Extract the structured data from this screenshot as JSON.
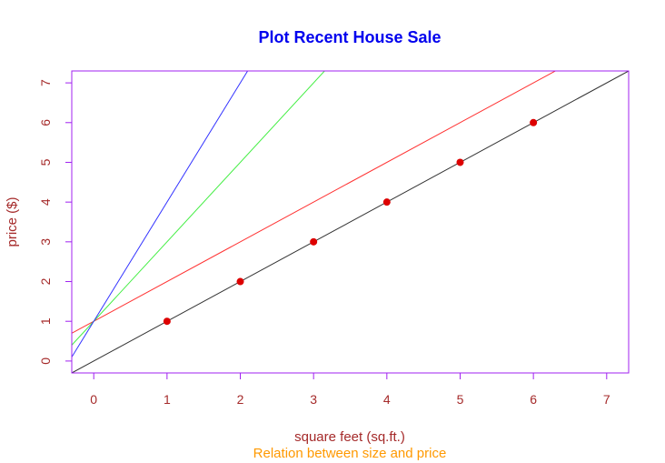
{
  "chart_data": {
    "type": "scatter",
    "title": "Plot Recent House Sale",
    "xlabel": "square feet (sq.ft.)",
    "ylabel": "price ($)",
    "subtitle": "Relation between size and price",
    "xlim": [
      -0.3,
      7.3
    ],
    "ylim": [
      -0.3,
      7.3
    ],
    "xticks": [
      0,
      1,
      2,
      3,
      4,
      5,
      6,
      7
    ],
    "yticks": [
      0,
      1,
      2,
      3,
      4,
      5,
      6,
      7
    ],
    "grid": false,
    "points": {
      "x": [
        1,
        2,
        3,
        4,
        5,
        6
      ],
      "y": [
        1,
        2,
        3,
        4,
        5,
        6
      ],
      "color": "#dd0000"
    },
    "lines": [
      {
        "intercept": 0,
        "slope": 1,
        "color": "#333333"
      },
      {
        "intercept": 1,
        "slope": 1,
        "color": "#ff3333"
      },
      {
        "intercept": 1,
        "slope": 2,
        "color": "#44ee44"
      },
      {
        "intercept": 1,
        "slope": 3,
        "color": "#3333ff"
      }
    ],
    "colors": {
      "title": "#0000ee",
      "axis_labels": "#a52a2a",
      "tick_labels": "#a52a2a",
      "subtitle": "#ff9900",
      "box": "#a020f0"
    }
  }
}
